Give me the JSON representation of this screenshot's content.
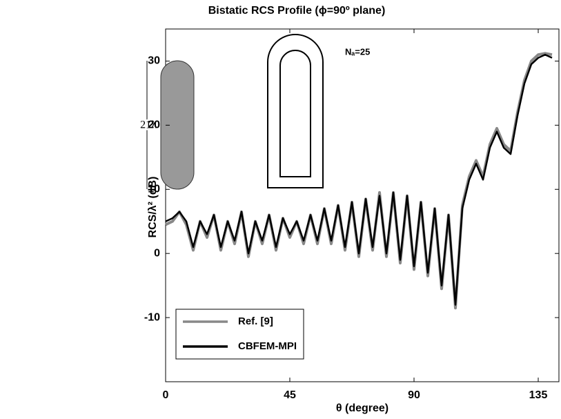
{
  "chart_data": {
    "type": "line",
    "title": "Bistatic RCS Profile (ϕ=90º plane)",
    "x_label": "θ (degree)",
    "y_label": "RCS/λ² (dB)",
    "annotations": [
      "21λ",
      "Nₐ=25"
    ],
    "x": [
      0,
      2.5,
      5,
      7.5,
      10,
      12.5,
      15,
      17.5,
      20,
      22.5,
      25,
      27.5,
      30,
      32.5,
      35,
      37.5,
      40,
      42.5,
      45,
      47.5,
      50,
      52.5,
      55,
      57.5,
      60,
      62.5,
      65,
      67.5,
      70,
      72.5,
      75,
      77.5,
      80,
      82.5,
      85,
      87.5,
      90,
      92.5,
      95,
      97.5,
      100,
      102.5,
      105,
      107.5,
      110,
      112.5,
      115,
      117.5,
      120,
      122.5,
      125,
      127.5,
      130,
      132.5,
      135,
      137.5,
      140
    ],
    "series": [
      {
        "name": "Ref. [9]",
        "color": "#888888",
        "values": [
          4.5,
          5,
          6.5,
          4.5,
          0.5,
          5,
          2.5,
          6,
          0.5,
          5,
          1.5,
          6.5,
          -0.5,
          5,
          1.5,
          6,
          0.5,
          5.5,
          2.5,
          5,
          1.5,
          6,
          1.5,
          7,
          1.5,
          7.5,
          0.5,
          8,
          -0.5,
          8.5,
          0.5,
          9.5,
          -0.5,
          9.5,
          -1.5,
          9,
          -2.5,
          8,
          -3.5,
          7,
          -5.5,
          6,
          -8.5,
          7.5,
          12,
          14.5,
          12,
          17,
          19.5,
          17,
          16,
          22,
          27,
          30,
          31,
          31.2,
          31
        ]
      },
      {
        "name": "CBFEM-MPI",
        "color": "#000000",
        "values": [
          5,
          5.5,
          6.5,
          5,
          1,
          5,
          3,
          6,
          1,
          5,
          2,
          6.5,
          0,
          5,
          2,
          6,
          1,
          5.5,
          3,
          5,
          2,
          6,
          2,
          7,
          2,
          7.5,
          1,
          8,
          0,
          8.5,
          1,
          9,
          0,
          9.5,
          -1,
          9,
          -2,
          8,
          -3,
          7,
          -5,
          6,
          -8,
          7,
          11.5,
          14,
          11.5,
          16.5,
          19,
          16.5,
          15.5,
          21.5,
          26.5,
          29.5,
          30.5,
          31,
          30.5
        ]
      }
    ],
    "xlim": [
      0,
      142.5
    ],
    "xticks": [
      0,
      45,
      90,
      135
    ],
    "ylim": [
      -20,
      35
    ],
    "yticks": [
      -10,
      0,
      10,
      20,
      30
    ],
    "legend": "lower left"
  }
}
